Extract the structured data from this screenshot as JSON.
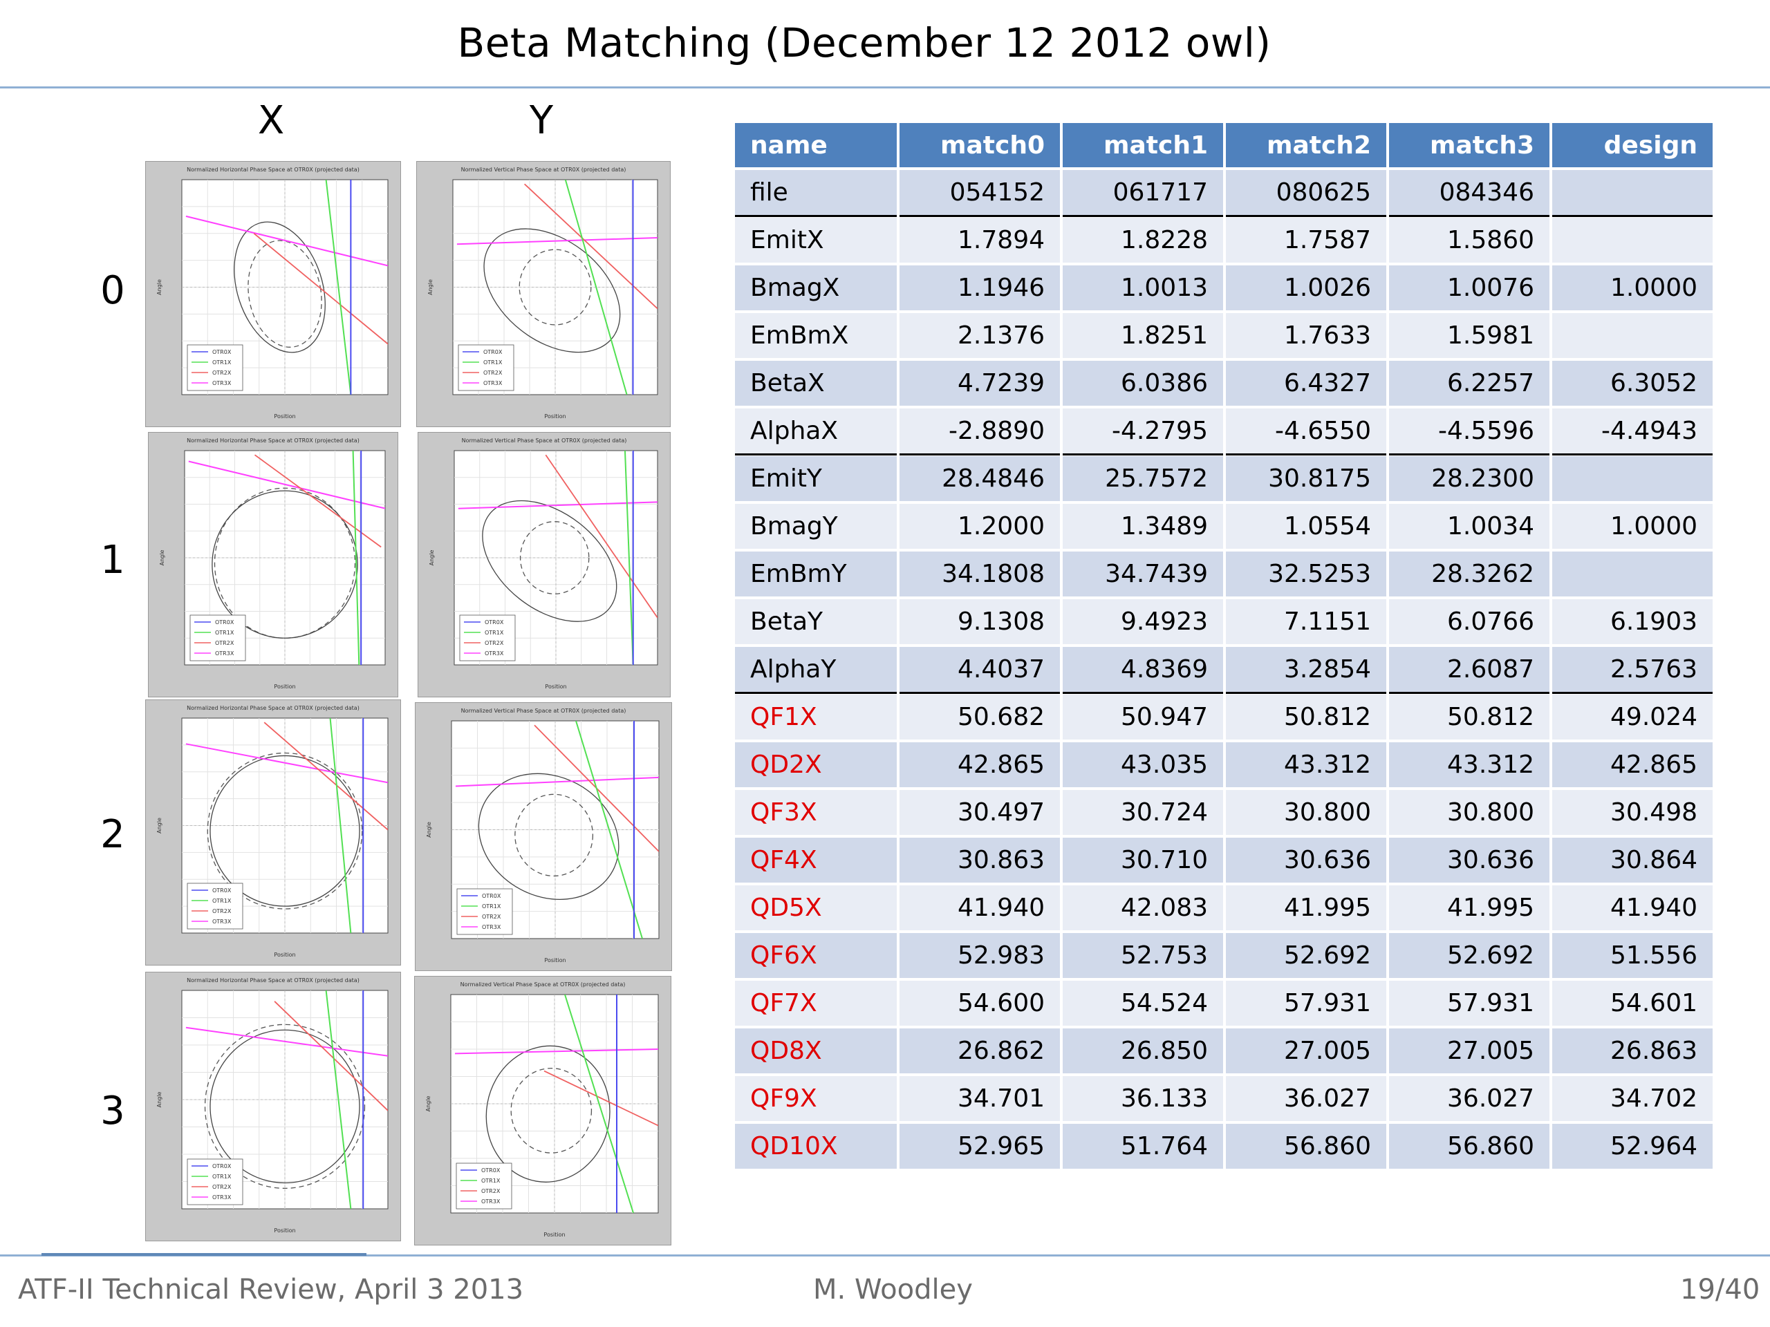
{
  "slide": {
    "title": "Beta Matching (December 12 2012 owl)",
    "footer_left": "ATF-II Technical Review, April 3 2013",
    "footer_center": "M. Woodley",
    "footer_right": "19/40"
  },
  "plots": {
    "col_x": "X",
    "col_y": "Y",
    "row_labels": [
      "0",
      "1",
      "2",
      "3"
    ],
    "x_title": "Normalized Horizontal Phase Space at OTR0X (projected data)",
    "y_title": "Normalized Vertical Phase Space at OTR0X (projected data)",
    "xlabel": "Position",
    "ylabel": "Angle",
    "legend": [
      "OTR0X",
      "OTR1X",
      "OTR2X",
      "OTR3X"
    ],
    "colors": {
      "otr0": "#4a4af0",
      "otr1": "#52e052",
      "otr2": "#f06060",
      "otr3": "#ff40ff"
    }
  },
  "table": {
    "headers": [
      "name",
      "match0",
      "match1",
      "match2",
      "match3",
      "design"
    ],
    "rows": [
      {
        "name": "file",
        "vals": [
          "054152",
          "061717",
          "080625",
          "084346",
          ""
        ]
      },
      {
        "name": "EmitX",
        "vals": [
          "1.7894",
          "1.8228",
          "1.7587",
          "1.5860",
          ""
        ]
      },
      {
        "name": "BmagX",
        "vals": [
          "1.1946",
          "1.0013",
          "1.0026",
          "1.0076",
          "1.0000"
        ]
      },
      {
        "name": "EmBmX",
        "vals": [
          "2.1376",
          "1.8251",
          "1.7633",
          "1.5981",
          ""
        ]
      },
      {
        "name": "BetaX",
        "vals": [
          "4.7239",
          "6.0386",
          "6.4327",
          "6.2257",
          "6.3052"
        ]
      },
      {
        "name": "AlphaX",
        "vals": [
          "-2.8890",
          "-4.2795",
          "-4.6550",
          "-4.5596",
          "-4.4943"
        ]
      },
      {
        "name": "EmitY",
        "vals": [
          "28.4846",
          "25.7572",
          "30.8175",
          "28.2300",
          ""
        ]
      },
      {
        "name": "BmagY",
        "vals": [
          "1.2000",
          "1.3489",
          "1.0554",
          "1.0034",
          "1.0000"
        ]
      },
      {
        "name": "EmBmY",
        "vals": [
          "34.1808",
          "34.7439",
          "32.5253",
          "28.3262",
          ""
        ]
      },
      {
        "name": "BetaY",
        "vals": [
          "9.1308",
          "9.4923",
          "7.1151",
          "6.0766",
          "6.1903"
        ]
      },
      {
        "name": "AlphaY",
        "vals": [
          "4.4037",
          "4.8369",
          "3.2854",
          "2.6087",
          "2.5763"
        ]
      },
      {
        "name": "QF1X",
        "vals": [
          "50.682",
          "50.947",
          "50.812",
          "50.812",
          "49.024"
        ]
      },
      {
        "name": "QD2X",
        "vals": [
          "42.865",
          "43.035",
          "43.312",
          "43.312",
          "42.865"
        ]
      },
      {
        "name": "QF3X",
        "vals": [
          "30.497",
          "30.724",
          "30.800",
          "30.800",
          "30.498"
        ]
      },
      {
        "name": "QF4X",
        "vals": [
          "30.863",
          "30.710",
          "30.636",
          "30.636",
          "30.864"
        ]
      },
      {
        "name": "QD5X",
        "vals": [
          "41.940",
          "42.083",
          "41.995",
          "41.995",
          "41.940"
        ]
      },
      {
        "name": "QF6X",
        "vals": [
          "52.983",
          "52.753",
          "52.692",
          "52.692",
          "51.556"
        ]
      },
      {
        "name": "QF7X",
        "vals": [
          "54.600",
          "54.524",
          "57.931",
          "57.931",
          "54.601"
        ]
      },
      {
        "name": "QD8X",
        "vals": [
          "26.862",
          "26.850",
          "27.005",
          "27.005",
          "26.863"
        ]
      },
      {
        "name": "QF9X",
        "vals": [
          "34.701",
          "36.133",
          "36.027",
          "36.027",
          "34.702"
        ]
      },
      {
        "name": "QD10X",
        "vals": [
          "52.965",
          "51.764",
          "56.860",
          "56.860",
          "52.964"
        ]
      }
    ]
  }
}
